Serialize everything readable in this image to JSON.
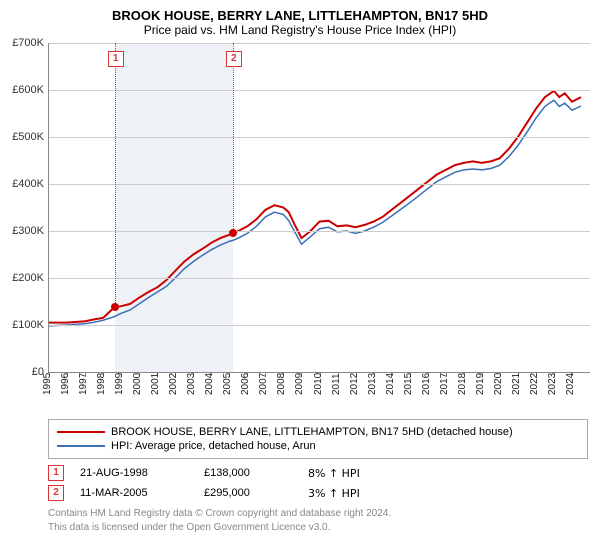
{
  "title": "BROOK HOUSE, BERRY LANE, LITTLEHAMPTON, BN17 5HD",
  "subtitle": "Price paid vs. HM Land Registry's House Price Index (HPI)",
  "chart": {
    "type": "line",
    "background_color": "#ffffff",
    "grid_color": "#cccccc",
    "shade_color": "#eef2f6",
    "ylabel_prefix": "£",
    "xlim": [
      1995,
      2025
    ],
    "ylim": [
      0,
      700000
    ],
    "ytick_step": 100000,
    "yticks": [
      "£0",
      "£100K",
      "£200K",
      "£300K",
      "£400K",
      "£500K",
      "£600K",
      "£700K"
    ],
    "xticks": [
      1995,
      1996,
      1997,
      1998,
      1999,
      2000,
      2001,
      2002,
      2003,
      2004,
      2005,
      2006,
      2007,
      2008,
      2009,
      2010,
      2011,
      2012,
      2013,
      2014,
      2015,
      2016,
      2017,
      2018,
      2019,
      2020,
      2021,
      2022,
      2023,
      2024
    ],
    "shade_span": [
      1998.64,
      2005.19
    ],
    "series": [
      {
        "id": "subject",
        "label": "BROOK HOUSE, BERRY LANE, LITTLEHAMPTON, BN17 5HD (detached house)",
        "color": "#cc0000",
        "line_width": 2,
        "points": [
          [
            1995.0,
            105000
          ],
          [
            1996.0,
            105000
          ],
          [
            1997.0,
            108000
          ],
          [
            1997.5,
            112000
          ],
          [
            1998.0,
            115000
          ],
          [
            1998.64,
            138000
          ],
          [
            1999.0,
            140000
          ],
          [
            1999.5,
            145000
          ],
          [
            2000.0,
            158000
          ],
          [
            2000.5,
            170000
          ],
          [
            2001.0,
            180000
          ],
          [
            2001.5,
            195000
          ],
          [
            2002.0,
            215000
          ],
          [
            2002.5,
            235000
          ],
          [
            2003.0,
            250000
          ],
          [
            2003.5,
            262000
          ],
          [
            2004.0,
            275000
          ],
          [
            2004.5,
            285000
          ],
          [
            2005.0,
            292000
          ],
          [
            2005.19,
            295000
          ],
          [
            2005.5,
            300000
          ],
          [
            2006.0,
            310000
          ],
          [
            2006.5,
            325000
          ],
          [
            2007.0,
            345000
          ],
          [
            2007.5,
            355000
          ],
          [
            2008.0,
            350000
          ],
          [
            2008.3,
            340000
          ],
          [
            2008.6,
            315000
          ],
          [
            2009.0,
            285000
          ],
          [
            2009.5,
            300000
          ],
          [
            2010.0,
            320000
          ],
          [
            2010.5,
            322000
          ],
          [
            2011.0,
            310000
          ],
          [
            2011.5,
            312000
          ],
          [
            2012.0,
            308000
          ],
          [
            2012.5,
            313000
          ],
          [
            2013.0,
            320000
          ],
          [
            2013.5,
            330000
          ],
          [
            2014.0,
            345000
          ],
          [
            2014.5,
            360000
          ],
          [
            2015.0,
            375000
          ],
          [
            2015.5,
            390000
          ],
          [
            2016.0,
            405000
          ],
          [
            2016.5,
            420000
          ],
          [
            2017.0,
            430000
          ],
          [
            2017.5,
            440000
          ],
          [
            2018.0,
            445000
          ],
          [
            2018.5,
            448000
          ],
          [
            2019.0,
            445000
          ],
          [
            2019.5,
            448000
          ],
          [
            2020.0,
            455000
          ],
          [
            2020.5,
            475000
          ],
          [
            2021.0,
            500000
          ],
          [
            2021.5,
            530000
          ],
          [
            2022.0,
            560000
          ],
          [
            2022.5,
            585000
          ],
          [
            2023.0,
            598000
          ],
          [
            2023.3,
            585000
          ],
          [
            2023.6,
            593000
          ],
          [
            2024.0,
            575000
          ],
          [
            2024.5,
            585000
          ]
        ]
      },
      {
        "id": "hpi",
        "label": "HPI: Average price, detached house, Arun",
        "color": "#3b6fb6",
        "line_width": 1.5,
        "points": [
          [
            1995.0,
            98000
          ],
          [
            1996.0,
            100000
          ],
          [
            1997.0,
            103000
          ],
          [
            1997.5,
            106000
          ],
          [
            1998.0,
            110000
          ],
          [
            1998.64,
            118000
          ],
          [
            1999.0,
            125000
          ],
          [
            1999.5,
            132000
          ],
          [
            2000.0,
            145000
          ],
          [
            2000.5,
            158000
          ],
          [
            2001.0,
            170000
          ],
          [
            2001.5,
            182000
          ],
          [
            2002.0,
            200000
          ],
          [
            2002.5,
            220000
          ],
          [
            2003.0,
            235000
          ],
          [
            2003.5,
            248000
          ],
          [
            2004.0,
            260000
          ],
          [
            2004.5,
            270000
          ],
          [
            2005.0,
            278000
          ],
          [
            2005.19,
            280000
          ],
          [
            2005.5,
            285000
          ],
          [
            2006.0,
            295000
          ],
          [
            2006.5,
            310000
          ],
          [
            2007.0,
            330000
          ],
          [
            2007.5,
            340000
          ],
          [
            2008.0,
            335000
          ],
          [
            2008.3,
            322000
          ],
          [
            2008.6,
            300000
          ],
          [
            2009.0,
            272000
          ],
          [
            2009.5,
            288000
          ],
          [
            2010.0,
            305000
          ],
          [
            2010.5,
            308000
          ],
          [
            2011.0,
            298000
          ],
          [
            2011.5,
            300000
          ],
          [
            2012.0,
            295000
          ],
          [
            2012.5,
            300000
          ],
          [
            2013.0,
            308000
          ],
          [
            2013.5,
            318000
          ],
          [
            2014.0,
            332000
          ],
          [
            2014.5,
            346000
          ],
          [
            2015.0,
            360000
          ],
          [
            2015.5,
            375000
          ],
          [
            2016.0,
            390000
          ],
          [
            2016.5,
            405000
          ],
          [
            2017.0,
            415000
          ],
          [
            2017.5,
            425000
          ],
          [
            2018.0,
            430000
          ],
          [
            2018.5,
            432000
          ],
          [
            2019.0,
            430000
          ],
          [
            2019.5,
            433000
          ],
          [
            2020.0,
            440000
          ],
          [
            2020.5,
            458000
          ],
          [
            2021.0,
            482000
          ],
          [
            2021.5,
            510000
          ],
          [
            2022.0,
            540000
          ],
          [
            2022.5,
            565000
          ],
          [
            2023.0,
            578000
          ],
          [
            2023.3,
            565000
          ],
          [
            2023.6,
            572000
          ],
          [
            2024.0,
            557000
          ],
          [
            2024.5,
            566000
          ]
        ]
      }
    ],
    "markers": [
      {
        "n": "1",
        "x": 1998.64,
        "y": 138000,
        "color": "#cc0000"
      },
      {
        "n": "2",
        "x": 2005.19,
        "y": 295000,
        "color": "#cc0000"
      }
    ]
  },
  "legend": {
    "items": [
      {
        "color": "#cc0000",
        "label": "BROOK HOUSE, BERRY LANE, LITTLEHAMPTON, BN17 5HD (detached house)"
      },
      {
        "color": "#3b6fb6",
        "label": "HPI: Average price, detached house, Arun"
      }
    ]
  },
  "transactions": [
    {
      "n": "1",
      "date": "21-AUG-1998",
      "price": "£138,000",
      "delta": "8% ↑ HPI"
    },
    {
      "n": "2",
      "date": "11-MAR-2005",
      "price": "£295,000",
      "delta": "3% ↑ HPI"
    }
  ],
  "footer": {
    "line1": "Contains HM Land Registry data © Crown copyright and database right 2024.",
    "line2": "This data is licensed under the Open Government Licence v3.0."
  }
}
